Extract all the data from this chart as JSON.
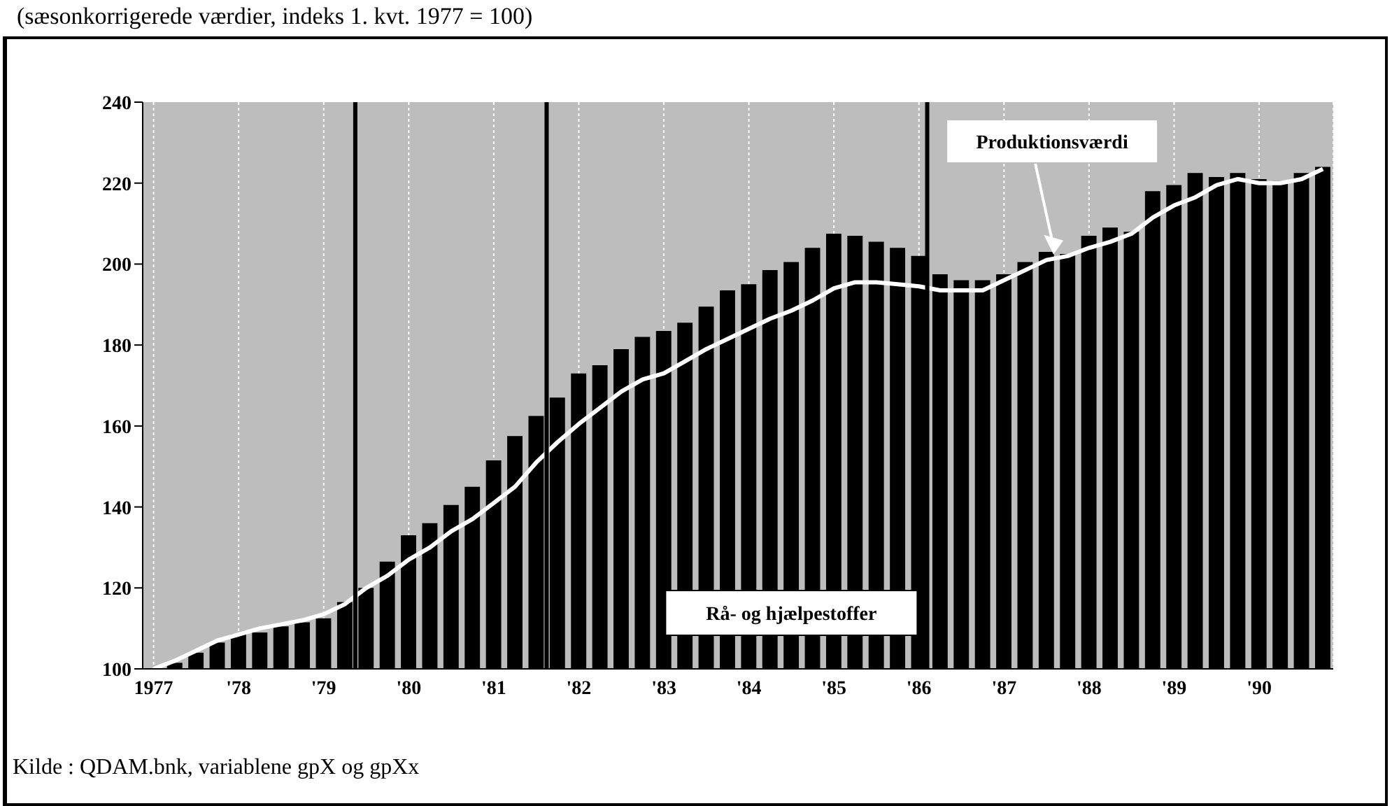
{
  "chart_data": {
    "type": "bar",
    "title": "(sæsonkorrigerede værdier, indeks 1. kvt. 1977 = 100)",
    "x": [
      "1977-01",
      "1977-04",
      "1977-07",
      "1977-10",
      "1978-01",
      "1978-04",
      "1978-07",
      "1978-10",
      "1979-01",
      "1979-04",
      "1979-07",
      "1979-10",
      "1980-01",
      "1980-04",
      "1980-07",
      "1980-10",
      "1981-01",
      "1981-04",
      "1981-07",
      "1981-10",
      "1982-01",
      "1982-04",
      "1982-07",
      "1982-10",
      "1983-01",
      "1983-04",
      "1983-07",
      "1983-10",
      "1984-01",
      "1984-04",
      "1984-07",
      "1984-10",
      "1985-01",
      "1985-04",
      "1985-07",
      "1985-10",
      "1986-01",
      "1986-04",
      "1986-07",
      "1986-10",
      "1987-01",
      "1987-04",
      "1987-07",
      "1987-10",
      "1988-01",
      "1988-04",
      "1988-07",
      "1988-10",
      "1989-01",
      "1989-04",
      "1989-07",
      "1989-10",
      "1990-01",
      "1990-04",
      "1990-07",
      "1990-10"
    ],
    "series": [
      {
        "name": "Rå- og hjælpestoffer",
        "color": "#000000",
        "values": [
          null,
          101.5,
          104,
          106.5,
          108.5,
          109,
          110.5,
          111.5,
          112.5,
          116.5,
          120,
          126.5,
          133,
          136,
          140.5,
          145,
          151.5,
          157.5,
          162.5,
          167,
          173,
          175,
          179,
          182,
          183.5,
          185.5,
          189.5,
          193.5,
          195,
          198.5,
          200.5,
          204,
          207.5,
          207,
          205.5,
          204,
          202,
          197.5,
          196,
          196,
          197.5,
          200.5,
          203,
          202.5,
          207,
          209,
          208,
          218,
          219.5,
          222.5,
          221.5,
          222.5,
          221,
          220.5,
          222.5,
          224
        ]
      },
      {
        "name": "Produktionsværdi",
        "type": "line",
        "color": "#ffffff",
        "values": [
          100,
          102,
          104.5,
          107,
          108.5,
          110,
          111,
          112,
          113.5,
          116,
          120,
          123,
          127,
          130,
          134,
          137,
          141,
          145,
          151,
          156,
          160.5,
          164.5,
          168.5,
          171.5,
          173,
          176,
          179,
          181.5,
          184,
          186.5,
          188.5,
          191,
          194,
          195.5,
          195.5,
          195,
          194.5,
          193.5,
          193.5,
          193.5,
          196,
          198.5,
          201,
          202,
          204,
          205.5,
          207.5,
          211.5,
          214.5,
          216.5,
          219.5,
          221,
          220,
          220,
          221,
          223.5
        ]
      }
    ],
    "xlim": [
      "1976-11-15",
      "1990-11-15"
    ],
    "xticks": [
      {
        "value": "1977-01",
        "label": "1977"
      },
      {
        "value": "1978-01",
        "label": "'78"
      },
      {
        "value": "1979-01",
        "label": "'79"
      },
      {
        "value": "1980-01",
        "label": "'80"
      },
      {
        "value": "1981-01",
        "label": "'81"
      },
      {
        "value": "1982-01",
        "label": "'82"
      },
      {
        "value": "1983-01",
        "label": "'83"
      },
      {
        "value": "1984-01",
        "label": "'84"
      },
      {
        "value": "1985-01",
        "label": "'85"
      },
      {
        "value": "1986-01",
        "label": "'86"
      },
      {
        "value": "1987-01",
        "label": "'87"
      },
      {
        "value": "1988-01",
        "label": "'88"
      },
      {
        "value": "1989-01",
        "label": "'89"
      },
      {
        "value": "1990-01",
        "label": "'90"
      }
    ],
    "ylim": [
      100,
      240
    ],
    "yticks": [
      100,
      120,
      140,
      160,
      180,
      200,
      220,
      240
    ],
    "ref_lines": [
      {
        "axis": "x",
        "value": "1979-05-15",
        "color": "#000000"
      },
      {
        "axis": "x",
        "value": "1981-08-15",
        "color": "#000000"
      },
      {
        "axis": "x",
        "value": "1986-02-06",
        "color": "#000000"
      }
    ],
    "grid": "x",
    "marker": "none",
    "line_style": "solid",
    "annotations": [
      "Kilde : QDAM.bnk, variablene gpX og gpXx"
    ]
  }
}
